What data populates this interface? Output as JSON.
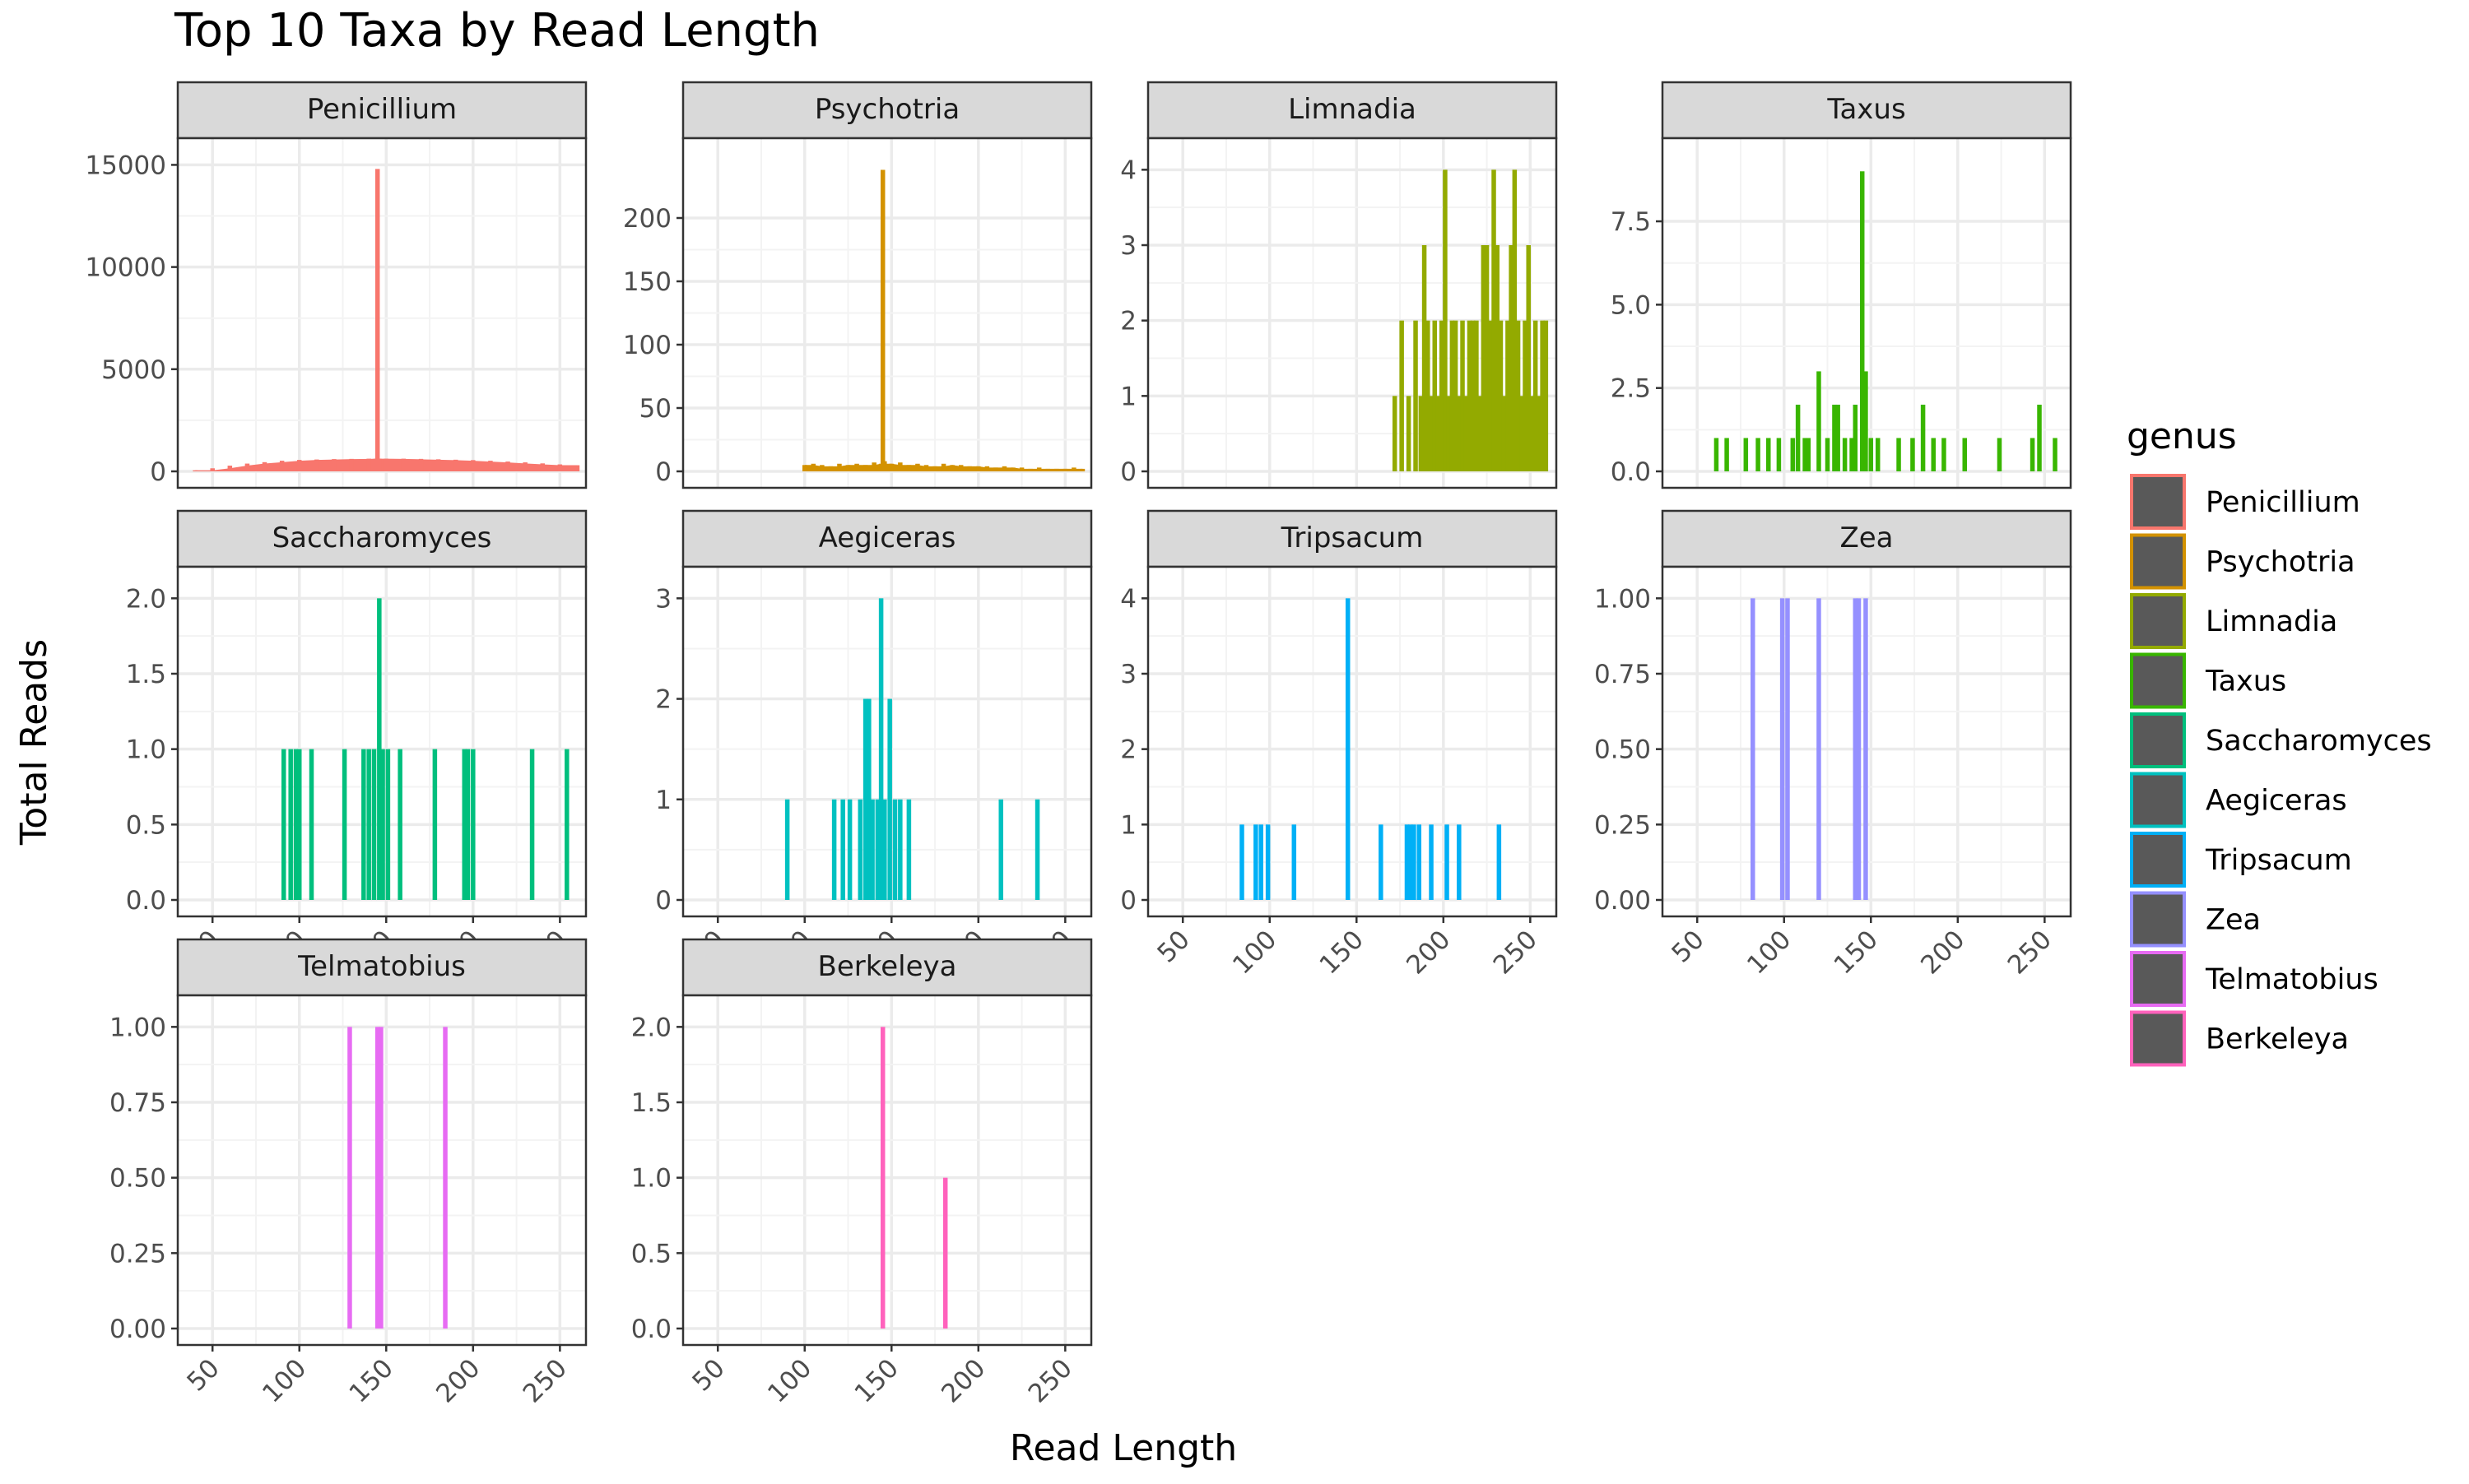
{
  "chart_data": {
    "type": "bar",
    "title": "Top 10 Taxa by Read Length",
    "xlabel": "Read Length",
    "ylabel": "Total Reads",
    "xlim": [
      30,
      265
    ],
    "x_ticks": [
      50,
      100,
      150,
      200,
      250
    ],
    "grid": true,
    "legend": {
      "title": "genus",
      "position": "right",
      "entries": [
        "Penicillium",
        "Psychotria",
        "Limnadia",
        "Taxus",
        "Saccharomyces",
        "Aegiceras",
        "Tripsacum",
        "Zea",
        "Telmatobius",
        "Berkeleya"
      ]
    },
    "panels": [
      {
        "name": "Penicillium",
        "color": "#F8766D",
        "y_ticks": [
          0,
          5000,
          10000,
          15000
        ],
        "y_tick_labels": [
          "0",
          "5000",
          "10000",
          "15000"
        ],
        "ylim": [
          0,
          15500
        ],
        "envelope": true,
        "x": [
          40,
          50,
          60,
          70,
          80,
          90,
          100,
          110,
          120,
          130,
          140,
          144,
          145,
          146,
          150,
          160,
          170,
          180,
          190,
          200,
          210,
          220,
          230,
          240,
          250,
          260
        ],
        "values": [
          50,
          150,
          280,
          380,
          450,
          520,
          560,
          580,
          600,
          610,
          620,
          620,
          14800,
          620,
          620,
          620,
          610,
          590,
          570,
          550,
          520,
          480,
          440,
          390,
          340,
          300
        ]
      },
      {
        "name": "Psychotria",
        "color": "#D39200",
        "y_ticks": [
          0,
          50,
          100,
          150,
          200
        ],
        "y_tick_labels": [
          "0",
          "50",
          "100",
          "150",
          "200"
        ],
        "ylim": [
          0,
          250
        ],
        "envelope": true,
        "x": [
          100,
          105,
          110,
          115,
          120,
          125,
          130,
          135,
          140,
          144,
          145,
          146,
          150,
          155,
          160,
          165,
          170,
          175,
          180,
          185,
          190,
          195,
          200,
          205,
          210,
          215,
          220,
          225,
          230,
          235,
          240,
          245,
          250,
          255,
          260
        ],
        "values": [
          5,
          6,
          5,
          4,
          6,
          5,
          6,
          5,
          7,
          6,
          238,
          8,
          6,
          7,
          5,
          6,
          5,
          4,
          6,
          5,
          5,
          4,
          4,
          4,
          3,
          4,
          3,
          3,
          2,
          3,
          2,
          2,
          2,
          3,
          2
        ]
      },
      {
        "name": "Limnadia",
        "color": "#93AA00",
        "y_ticks": [
          0,
          1,
          2,
          3,
          4
        ],
        "y_tick_labels": [
          "0",
          "1",
          "2",
          "3",
          "4"
        ],
        "ylim": [
          0,
          4.2
        ],
        "envelope": false,
        "x": [
          172,
          176,
          180,
          184,
          187,
          189,
          191,
          193,
          195,
          197,
          199,
          201,
          203,
          205,
          207,
          209,
          211,
          213,
          215,
          217,
          219,
          221,
          223,
          225,
          227,
          229,
          231,
          233,
          235,
          237,
          239,
          241,
          243,
          245,
          247,
          249,
          251,
          253,
          255,
          257,
          259
        ],
        "values": [
          1,
          2,
          1,
          2,
          1,
          3,
          2,
          1,
          2,
          1,
          2,
          4,
          1,
          2,
          2,
          1,
          2,
          1,
          2,
          2,
          2,
          1,
          3,
          3,
          2,
          4,
          3,
          2,
          1,
          2,
          3,
          4,
          2,
          1,
          2,
          3,
          1,
          2,
          1,
          2,
          2
        ]
      },
      {
        "name": "Taxus",
        "color": "#39B600",
        "y_ticks": [
          0,
          2.5,
          5,
          7.5
        ],
        "y_tick_labels": [
          "0.0",
          "2.5",
          "5.0",
          "7.5"
        ],
        "ylim": [
          0,
          9.5
        ],
        "envelope": false,
        "x": [
          61,
          67,
          78,
          85,
          91,
          97,
          105,
          108,
          112,
          114,
          120,
          125,
          129,
          131,
          135,
          139,
          141,
          145,
          147,
          150,
          154,
          166,
          174,
          180,
          186,
          192,
          204,
          224,
          243,
          247,
          256
        ],
        "values": [
          1,
          1,
          1,
          1,
          1,
          1,
          1,
          2,
          1,
          1,
          3,
          1,
          2,
          2,
          1,
          1,
          2,
          9,
          3,
          1,
          1,
          1,
          1,
          2,
          1,
          1,
          1,
          1,
          1,
          2,
          1
        ]
      },
      {
        "name": "Saccharomyces",
        "color": "#00BF7D",
        "y_ticks": [
          0,
          0.5,
          1,
          1.5,
          2
        ],
        "y_tick_labels": [
          "0.0",
          "0.5",
          "1.0",
          "1.5",
          "2.0"
        ],
        "ylim": [
          0,
          2.1
        ],
        "envelope": false,
        "x": [
          91,
          95,
          98,
          100,
          107,
          126,
          137,
          140,
          143,
          146,
          148,
          151,
          158,
          178,
          195,
          197,
          200,
          234,
          254
        ],
        "values": [
          1,
          1,
          1,
          1,
          1,
          1,
          1,
          1,
          1,
          2,
          1,
          1,
          1,
          1,
          1,
          1,
          1,
          1,
          1
        ]
      },
      {
        "name": "Aegiceras",
        "color": "#00C1C0",
        "y_ticks": [
          0,
          1,
          2,
          3
        ],
        "y_tick_labels": [
          "0",
          "1",
          "2",
          "3"
        ],
        "ylim": [
          0,
          3.15
        ],
        "envelope": false,
        "x": [
          90,
          117,
          122,
          126,
          132,
          135,
          137,
          139,
          142,
          144,
          146,
          149,
          152,
          155,
          160,
          213,
          234
        ],
        "values": [
          1,
          1,
          1,
          1,
          1,
          2,
          2,
          1,
          1,
          3,
          1,
          2,
          1,
          1,
          1,
          1,
          1
        ]
      },
      {
        "name": "Tripsacum",
        "color": "#00B0F6",
        "y_ticks": [
          0,
          1,
          2,
          3,
          4
        ],
        "y_tick_labels": [
          "0",
          "1",
          "2",
          "3",
          "4"
        ],
        "ylim": [
          0,
          4.2
        ],
        "envelope": false,
        "x": [
          84,
          92,
          95,
          99,
          114,
          145,
          164,
          179,
          181,
          183,
          186,
          193,
          202,
          209,
          232
        ],
        "values": [
          1,
          1,
          1,
          1,
          1,
          4,
          1,
          1,
          1,
          1,
          1,
          1,
          1,
          1,
          1
        ]
      },
      {
        "name": "Zea",
        "color": "#9590FF",
        "y_ticks": [
          0,
          0.25,
          0.5,
          0.75,
          1
        ],
        "y_tick_labels": [
          "0.00",
          "0.25",
          "0.50",
          "0.75",
          "1.00"
        ],
        "ylim": [
          0,
          1.05
        ],
        "envelope": false,
        "x": [
          82,
          99,
          102,
          120,
          141,
          143,
          147
        ],
        "values": [
          1,
          1,
          1,
          1,
          1,
          1,
          1
        ]
      },
      {
        "name": "Telmatobius",
        "color": "#E76BF3",
        "y_ticks": [
          0,
          0.25,
          0.5,
          0.75,
          1
        ],
        "y_tick_labels": [
          "0.00",
          "0.25",
          "0.50",
          "0.75",
          "1.00"
        ],
        "ylim": [
          0,
          1.05
        ],
        "envelope": false,
        "x": [
          129,
          145,
          147,
          184
        ],
        "values": [
          1,
          1,
          1,
          1
        ]
      },
      {
        "name": "Berkeleya",
        "color": "#FF62BC",
        "y_ticks": [
          0,
          0.5,
          1,
          1.5,
          2
        ],
        "y_tick_labels": [
          "0.0",
          "0.5",
          "1.0",
          "1.5",
          "2.0"
        ],
        "ylim": [
          0,
          2.1
        ],
        "envelope": false,
        "x": [
          145,
          181
        ],
        "values": [
          2,
          1
        ]
      }
    ]
  }
}
